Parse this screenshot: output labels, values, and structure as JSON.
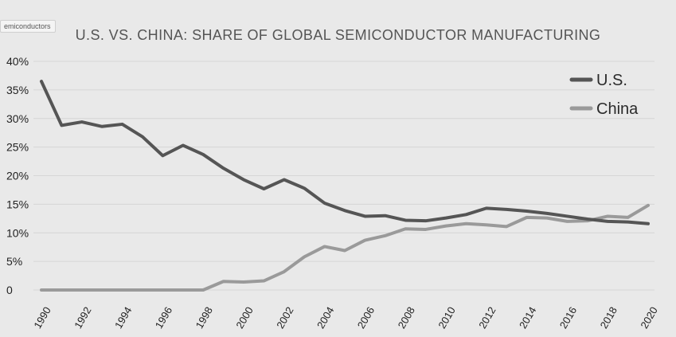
{
  "tag_label": "emiconductors",
  "chart_data": {
    "type": "line",
    "title": "U.S. VS. CHINA: SHARE OF GLOBAL SEMICONDUCTOR MANUFACTURING",
    "xlabel": "",
    "ylabel": "",
    "x": [
      1990,
      1991,
      1992,
      1993,
      1994,
      1995,
      1996,
      1997,
      1998,
      1999,
      2000,
      2001,
      2002,
      2003,
      2004,
      2005,
      2006,
      2007,
      2008,
      2009,
      2010,
      2011,
      2012,
      2013,
      2014,
      2015,
      2016,
      2017,
      2018,
      2019,
      2020
    ],
    "xticks": [
      "1990",
      "1992",
      "1994",
      "1996",
      "1998",
      "2000",
      "2002",
      "2004",
      "2006",
      "2008",
      "2010",
      "2012",
      "2014",
      "2016",
      "2018",
      "2020"
    ],
    "yticks": [
      "0",
      "5%",
      "10%",
      "15%",
      "20%",
      "25%",
      "30%",
      "35%",
      "40%"
    ],
    "ylim": [
      0,
      40
    ],
    "grid": true,
    "legend_position": "top-right",
    "series": [
      {
        "name": "U.S.",
        "color": "#555555",
        "values": [
          36.5,
          28.8,
          29.4,
          28.6,
          29.0,
          26.8,
          23.5,
          25.3,
          23.7,
          21.3,
          19.3,
          17.7,
          19.3,
          17.8,
          15.2,
          13.9,
          12.9,
          13.0,
          12.2,
          12.1,
          12.6,
          13.2,
          14.3,
          14.1,
          13.8,
          13.4,
          12.9,
          12.4,
          12.0,
          11.9,
          11.6
        ]
      },
      {
        "name": "China",
        "color": "#9a9a9a",
        "values": [
          0,
          0,
          0,
          0,
          0,
          0,
          0,
          0,
          0,
          1.5,
          1.4,
          1.6,
          3.2,
          5.8,
          7.6,
          6.9,
          8.7,
          9.5,
          10.7,
          10.6,
          11.2,
          11.6,
          11.4,
          11.1,
          12.7,
          12.6,
          12.0,
          12.1,
          12.9,
          12.7,
          14.8
        ]
      }
    ]
  }
}
